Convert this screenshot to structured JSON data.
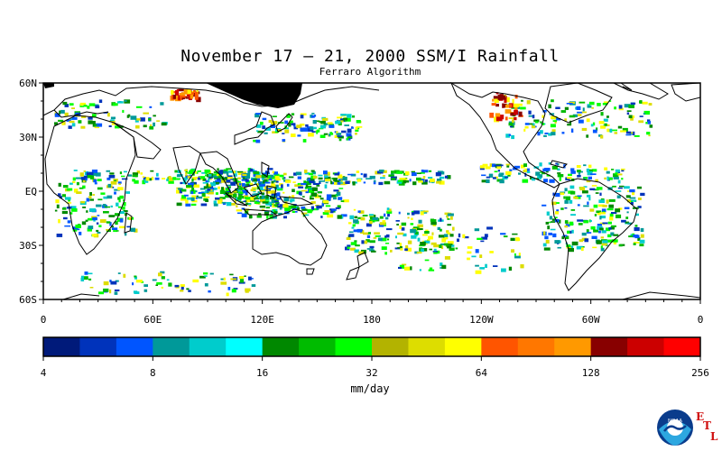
{
  "figure": {
    "title": "November 17 – 21, 2000 SSM/I Rainfall",
    "subtitle": "Ferraro Algorithm",
    "lat_labels": [
      "60N",
      "30N",
      "EQ",
      "30S",
      "60S"
    ],
    "lon_labels": [
      "0",
      "60E",
      "120E",
      "180",
      "120W",
      "60W",
      "0"
    ],
    "colorbar": {
      "colors": [
        "#001a7a",
        "#0033bb",
        "#0055ff",
        "#009999",
        "#00cccc",
        "#00ffff",
        "#008800",
        "#00bb00",
        "#00ff00",
        "#b3b300",
        "#dddd00",
        "#ffff00",
        "#ff5500",
        "#ff7700",
        "#ff9900",
        "#880000",
        "#cc0000",
        "#ff0000"
      ],
      "tick_labels": [
        "4",
        "8",
        "16",
        "32",
        "64",
        "128",
        "256"
      ],
      "units": "mm/day"
    },
    "logo": {
      "name": "noaa-logo",
      "text": "NOAA",
      "etl_letters": [
        "E",
        "T",
        "L"
      ]
    }
  }
}
